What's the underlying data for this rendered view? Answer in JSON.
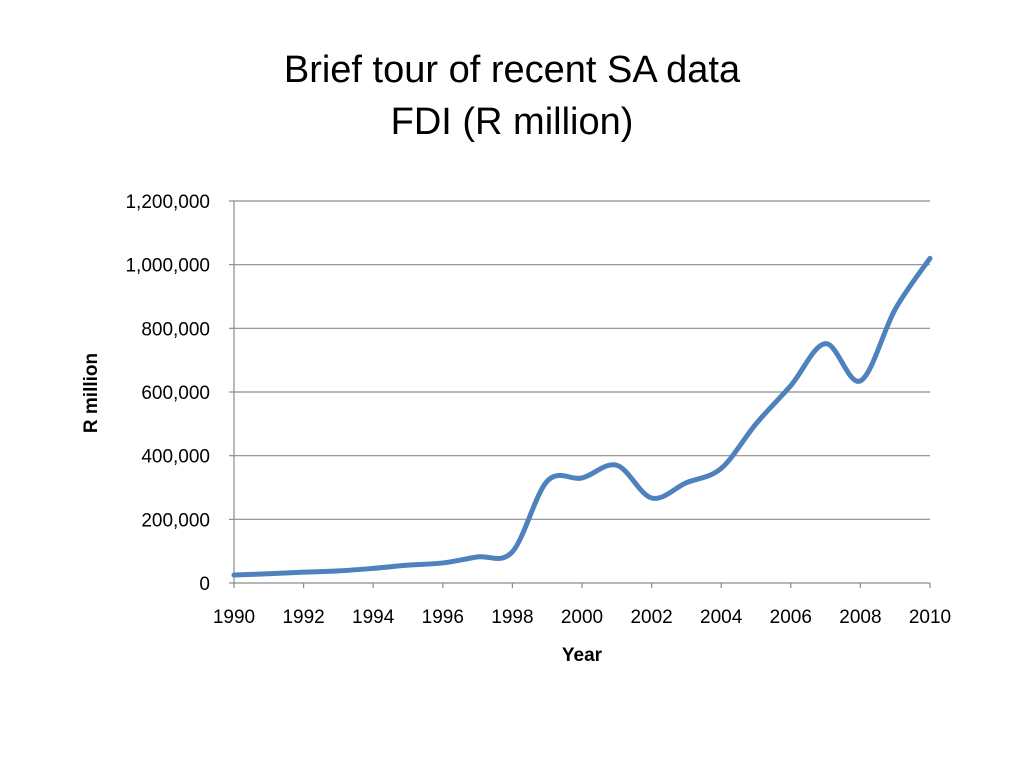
{
  "slide": {
    "title_line1": "Brief tour of recent SA data",
    "title_line2": "FDI (R million)"
  },
  "chart_data": {
    "type": "line",
    "title": "",
    "xlabel": "Year",
    "ylabel": "R million",
    "xlim": [
      1990,
      2010
    ],
    "ylim": [
      0,
      1200000
    ],
    "x_ticks": [
      1990,
      1992,
      1994,
      1996,
      1998,
      2000,
      2002,
      2004,
      2006,
      2008,
      2010
    ],
    "y_ticks": [
      0,
      200000,
      400000,
      600000,
      800000,
      1000000,
      1200000
    ],
    "y_tick_labels": [
      "0",
      "200,000",
      "400,000",
      "600,000",
      "800,000",
      "1,000,000",
      "1,200,000"
    ],
    "grid": "horizontal",
    "legend": "none",
    "smooth": true,
    "line_color": "#4F81BD",
    "series": [
      {
        "x": [
          1990,
          1991,
          1992,
          1993,
          1994,
          1995,
          1996,
          1997,
          1998,
          1999,
          2000,
          2001,
          2002,
          2003,
          2004,
          2005,
          2006,
          2007,
          2008,
          2009,
          2010
        ],
        "values": [
          25000,
          29000,
          34000,
          38000,
          46000,
          56000,
          63000,
          82000,
          98000,
          320000,
          330000,
          370000,
          267000,
          315000,
          360000,
          500000,
          620000,
          752000,
          635000,
          860000,
          1020000
        ]
      }
    ]
  }
}
